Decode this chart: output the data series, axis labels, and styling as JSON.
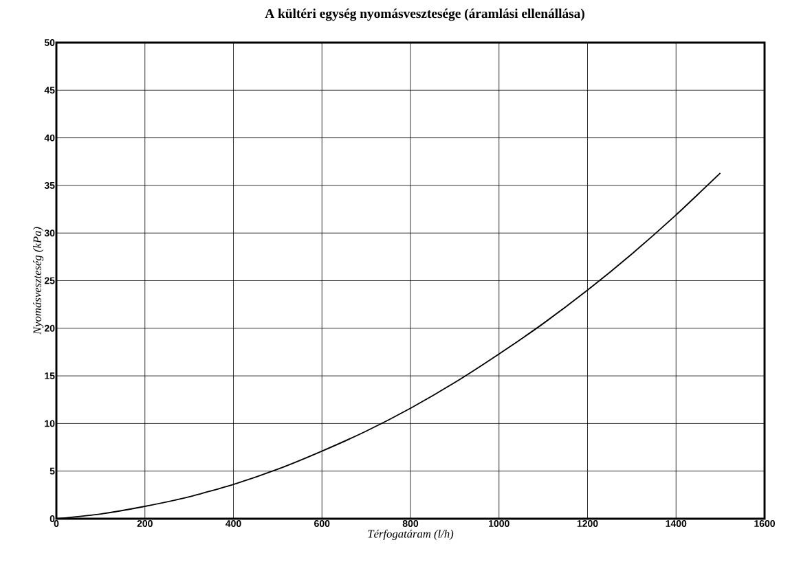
{
  "chart_data": {
    "type": "line",
    "title": "A kültéri egység nyomásvesztesége (áramlási ellenállása)",
    "xlabel": "Térfogatáram (l/h)",
    "ylabel": "Nyomásveszteség (kPa)",
    "x": [
      0,
      100,
      200,
      300,
      400,
      500,
      600,
      700,
      800,
      900,
      1000,
      1100,
      1200,
      1300,
      1400,
      1500
    ],
    "series": [
      {
        "color": "#000000",
        "values": [
          0,
          0.5,
          1.3,
          2.3,
          3.6,
          5.2,
          7.1,
          9.2,
          11.6,
          14.3,
          17.3,
          20.5,
          24.0,
          27.8,
          31.9,
          36.3
        ]
      }
    ],
    "xlim": [
      0,
      1600
    ],
    "ylim": [
      0,
      50
    ],
    "xticks": [
      0,
      200,
      400,
      600,
      800,
      1000,
      1200,
      1400,
      1600
    ],
    "yticks": [
      0,
      5,
      10,
      15,
      20,
      25,
      30,
      35,
      40,
      45,
      50
    ],
    "grid": true,
    "marker": "none",
    "line_style": "solid"
  }
}
